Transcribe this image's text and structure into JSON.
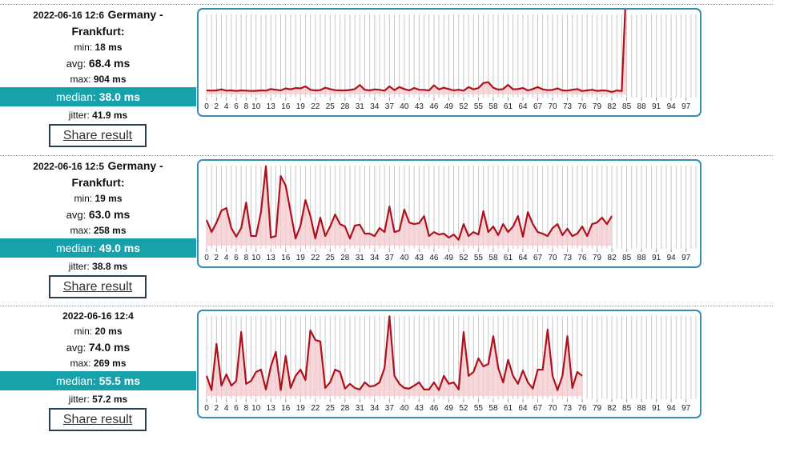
{
  "labels": {
    "min": "min:",
    "avg": "avg:",
    "max": "max:",
    "median": "median:",
    "jitter": "jitter:",
    "share": "Share result"
  },
  "results": [
    {
      "date": "2022-06-16 12:6",
      "location": "Germany - Frankfurt:",
      "min": "18 ms",
      "avg": "68.4 ms",
      "max": "904 ms",
      "median": "38.0 ms",
      "jitter": "41.9 ms",
      "chart_data": {
        "type": "line",
        "color": "#b0101c",
        "fill": "#f6c9cd",
        "grid": true,
        "xlim": [
          0,
          99
        ],
        "ylim": [
          0,
          600
        ],
        "xticks": [
          0,
          2,
          4,
          6,
          8,
          10,
          13,
          16,
          19,
          22,
          25,
          28,
          31,
          34,
          37,
          40,
          43,
          46,
          49,
          52,
          55,
          58,
          61,
          64,
          67,
          70,
          73,
          76,
          79,
          82,
          85,
          88,
          91,
          94,
          97
        ],
        "x": [
          0,
          1,
          2,
          3,
          4,
          5,
          6,
          7,
          8,
          9,
          10,
          11,
          12,
          13,
          14,
          15,
          16,
          17,
          18,
          19,
          20,
          21,
          22,
          23,
          24,
          25,
          26,
          27,
          28,
          29,
          30,
          31,
          32,
          33,
          34,
          35,
          36,
          37,
          38,
          39,
          40,
          41,
          42,
          43,
          44,
          45,
          46,
          47,
          48,
          49,
          50,
          51,
          52,
          53,
          54,
          55,
          56,
          57,
          58,
          59,
          60,
          61,
          62,
          63,
          64,
          65,
          66,
          67,
          68,
          69,
          70,
          71,
          72,
          73,
          74,
          75,
          76,
          77,
          78,
          79,
          80,
          81,
          82,
          83,
          84,
          85
        ],
        "values": [
          30,
          28,
          30,
          38,
          28,
          30,
          26,
          30,
          28,
          26,
          27,
          30,
          28,
          40,
          35,
          30,
          45,
          38,
          48,
          45,
          60,
          35,
          30,
          32,
          50,
          40,
          32,
          30,
          30,
          33,
          40,
          70,
          35,
          30,
          38,
          34,
          28,
          60,
          32,
          55,
          40,
          30,
          48,
          35,
          34,
          30,
          68,
          38,
          50,
          40,
          30,
          35,
          28,
          55,
          38,
          48,
          85,
          92,
          50,
          36,
          40,
          72,
          38,
          40,
          48,
          30,
          40,
          55,
          38,
          32,
          34,
          45,
          30,
          28,
          35,
          40,
          25,
          30,
          35,
          26,
          30,
          28,
          18,
          30,
          25,
          904
        ]
      }
    },
    {
      "date": "2022-06-16 12:5",
      "location": "Germany - Frankfurt:",
      "min": "19 ms",
      "avg": "63.0 ms",
      "max": "258 ms",
      "median": "49.0 ms",
      "jitter": "38.8 ms",
      "chart_data": {
        "type": "line",
        "color": "#b0101c",
        "fill": "#f6c9cd",
        "grid": true,
        "xlim": [
          0,
          99
        ],
        "ylim": [
          0,
          260
        ],
        "xticks": [
          0,
          2,
          4,
          6,
          8,
          10,
          13,
          16,
          19,
          22,
          25,
          28,
          31,
          34,
          37,
          40,
          43,
          46,
          49,
          52,
          55,
          58,
          61,
          64,
          67,
          70,
          73,
          76,
          79,
          82,
          85,
          88,
          91,
          94,
          97
        ],
        "x": [
          0,
          1,
          2,
          3,
          4,
          5,
          6,
          7,
          8,
          9,
          10,
          11,
          12,
          13,
          14,
          15,
          16,
          17,
          18,
          19,
          20,
          21,
          22,
          23,
          24,
          25,
          26,
          27,
          28,
          29,
          30,
          31,
          32,
          33,
          34,
          35,
          36,
          37,
          38,
          39,
          40,
          41,
          42,
          43,
          44,
          45,
          46,
          47,
          48,
          49,
          50,
          51,
          52,
          53,
          54,
          55,
          56,
          57,
          58,
          59,
          60,
          61,
          62,
          63,
          64,
          65,
          66,
          67,
          68,
          69,
          70,
          71,
          72,
          73,
          74,
          75,
          76,
          77,
          78,
          79,
          80,
          81,
          82
        ],
        "values": [
          83,
          44,
          75,
          114,
          122,
          57,
          29,
          57,
          140,
          31,
          31,
          109,
          258,
          26,
          31,
          226,
          195,
          109,
          23,
          65,
          148,
          96,
          23,
          91,
          31,
          62,
          101,
          70,
          62,
          23,
          65,
          68,
          39,
          39,
          31,
          57,
          44,
          127,
          44,
          49,
          117,
          75,
          70,
          73,
          96,
          31,
          44,
          36,
          39,
          26,
          36,
          19,
          70,
          31,
          44,
          36,
          112,
          44,
          62,
          34,
          70,
          44,
          62,
          96,
          29,
          109,
          70,
          44,
          39,
          31,
          57,
          70,
          34,
          55,
          31,
          39,
          62,
          31,
          70,
          75,
          91,
          70,
          96
        ]
      }
    },
    {
      "date": "2022-06-16 12:4",
      "min": "20 ms",
      "avg": "74.0 ms",
      "max": "269 ms",
      "median": "55.5 ms",
      "jitter": "57.2 ms",
      "chart_data": {
        "type": "line",
        "color": "#b0101c",
        "fill": "#f6c9cd",
        "grid": true,
        "xlim": [
          0,
          99
        ],
        "ylim": [
          0,
          270
        ],
        "xticks": [
          0,
          2,
          4,
          6,
          8,
          10,
          13,
          16,
          19,
          22,
          25,
          28,
          31,
          34,
          37,
          40,
          43,
          46,
          49,
          52,
          55,
          58,
          61,
          64,
          67,
          70,
          73,
          76,
          79,
          82,
          85,
          88,
          91,
          94,
          97
        ],
        "x": [
          0,
          1,
          2,
          3,
          4,
          5,
          6,
          7,
          8,
          9,
          10,
          11,
          12,
          13,
          14,
          15,
          16,
          17,
          18,
          19,
          20,
          21,
          22,
          23,
          24,
          25,
          26,
          27,
          28,
          29,
          30,
          31,
          32,
          33,
          34,
          35,
          36,
          37,
          38,
          39,
          40,
          41,
          42,
          43,
          44,
          45,
          46,
          47,
          48,
          49,
          50,
          51,
          52,
          53,
          54,
          55,
          56,
          57,
          58,
          59,
          60,
          61,
          62,
          63,
          64,
          65,
          66,
          67,
          68,
          69,
          70,
          71,
          72,
          73,
          74,
          75,
          76
        ],
        "values": [
          68,
          20,
          176,
          35,
          73,
          35,
          51,
          216,
          41,
          51,
          81,
          89,
          22,
          100,
          149,
          20,
          135,
          27,
          68,
          89,
          54,
          221,
          189,
          184,
          27,
          46,
          89,
          81,
          25,
          41,
          27,
          22,
          46,
          32,
          35,
          46,
          95,
          269,
          68,
          41,
          27,
          25,
          35,
          46,
          22,
          22,
          46,
          20,
          68,
          41,
          46,
          22,
          216,
          68,
          81,
          127,
          100,
          108,
          202,
          95,
          46,
          122,
          68,
          41,
          86,
          46,
          25,
          89,
          89,
          224,
          68,
          20,
          68,
          202,
          27,
          81,
          68
        ]
      }
    }
  ]
}
